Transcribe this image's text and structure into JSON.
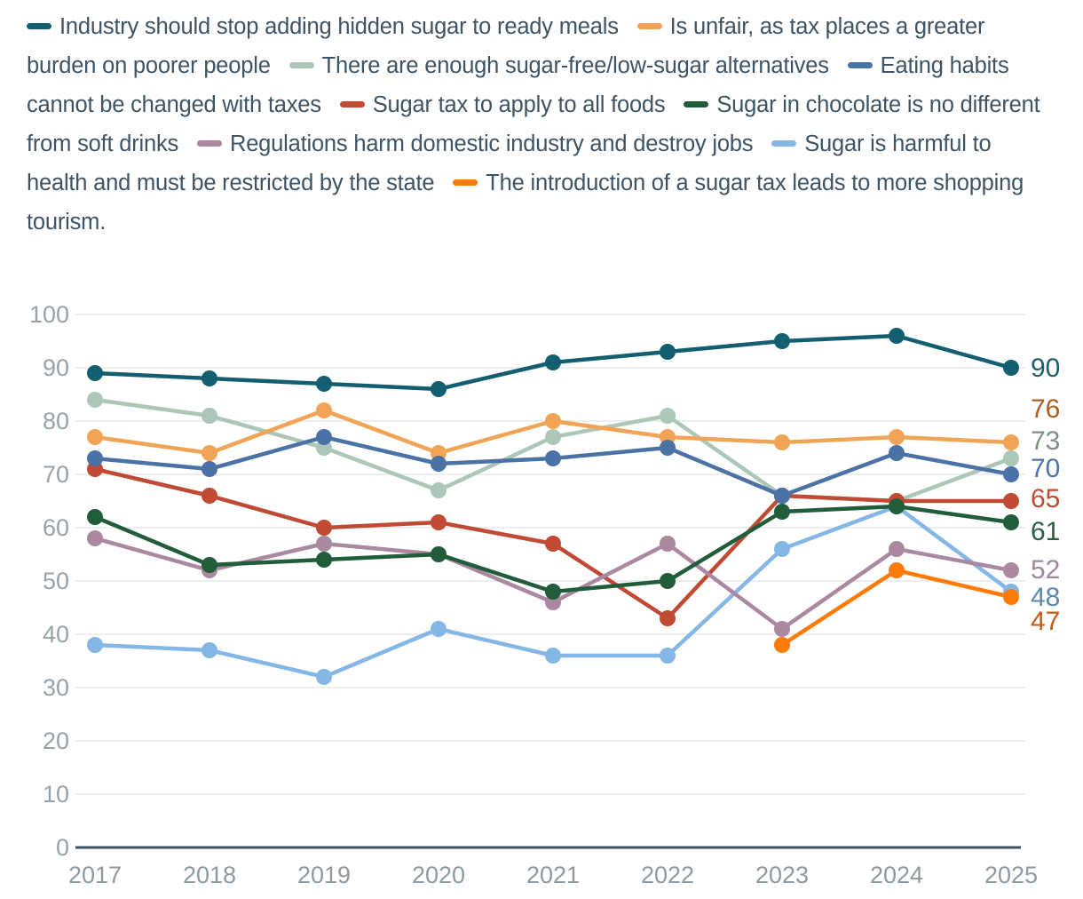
{
  "page": {
    "background": "#FFFFFF"
  },
  "chart_data": {
    "type": "line",
    "x": [
      "2017",
      "2018",
      "2019",
      "2020",
      "2021",
      "2022",
      "2023",
      "2024",
      "2025"
    ],
    "ylim": [
      0,
      100
    ],
    "yticks": [
      "0",
      "10",
      "20",
      "30",
      "40",
      "50",
      "60",
      "70",
      "80",
      "90",
      "100"
    ],
    "grid": "horizontal",
    "legend_position": "top",
    "series": [
      {
        "name": "Industry should stop adding hidden sugar to ready meals",
        "color": "#135E70",
        "label_color": "#1A5F70",
        "end_label": "90",
        "values": [
          89,
          88,
          87,
          86,
          91,
          93,
          95,
          96,
          90
        ]
      },
      {
        "name": "Is unfair, as tax places a greater burden on poorer people",
        "color": "#F2A456",
        "label_color": "#B05E1E",
        "end_label": "76",
        "values": [
          77,
          74,
          82,
          74,
          80,
          77,
          76,
          77,
          76
        ]
      },
      {
        "name": "There are enough sugar-free/low-sugar alternatives",
        "color": "#ACC6B8",
        "label_color": "#7D9181",
        "end_label": "73",
        "values": [
          84,
          81,
          75,
          67,
          77,
          81,
          66,
          65,
          73
        ]
      },
      {
        "name": "Eating habits cannot be changed with taxes",
        "color": "#4B72A6",
        "label_color": "#4D74A6",
        "end_label": "70",
        "values": [
          73,
          71,
          77,
          72,
          73,
          75,
          66,
          74,
          70
        ]
      },
      {
        "name": "Sugar tax to apply to all foods",
        "color": "#C04A33",
        "label_color": "#C24B33",
        "end_label": "65",
        "values": [
          71,
          66,
          60,
          61,
          57,
          43,
          66,
          65,
          65
        ]
      },
      {
        "name": "Sugar in chocolate is no different from soft drinks",
        "color": "#215C3B",
        "label_color": "#2C5F40",
        "end_label": "61",
        "values": [
          62,
          53,
          54,
          55,
          48,
          50,
          63,
          64,
          61
        ]
      },
      {
        "name": "Regulations harm domestic industry and destroy jobs",
        "color": "#AA88A0",
        "label_color": "#A2839C",
        "end_label": "52",
        "values": [
          58,
          52,
          57,
          55,
          46,
          57,
          41,
          56,
          52
        ]
      },
      {
        "name": "Sugar is harmful to health and must be restricted by the state",
        "color": "#84B6E6",
        "label_color": "#5C87B2",
        "end_label": "48",
        "values": [
          38,
          37,
          32,
          41,
          36,
          36,
          56,
          64,
          48
        ]
      },
      {
        "name": "The introduction of a sugar tax leads to more shopping tourism.",
        "color": "#FF7B08",
        "label_color": "#C65A13",
        "end_label": "47",
        "values": [
          null,
          null,
          null,
          null,
          null,
          null,
          38,
          52,
          47
        ]
      }
    ],
    "colors": {
      "gridline": "#E6E8EA",
      "axis_line": "#3E5160",
      "ytick_text": "#98A2AA",
      "xtick_text": "#8E99A2",
      "legend_text": "#3E5363"
    }
  }
}
